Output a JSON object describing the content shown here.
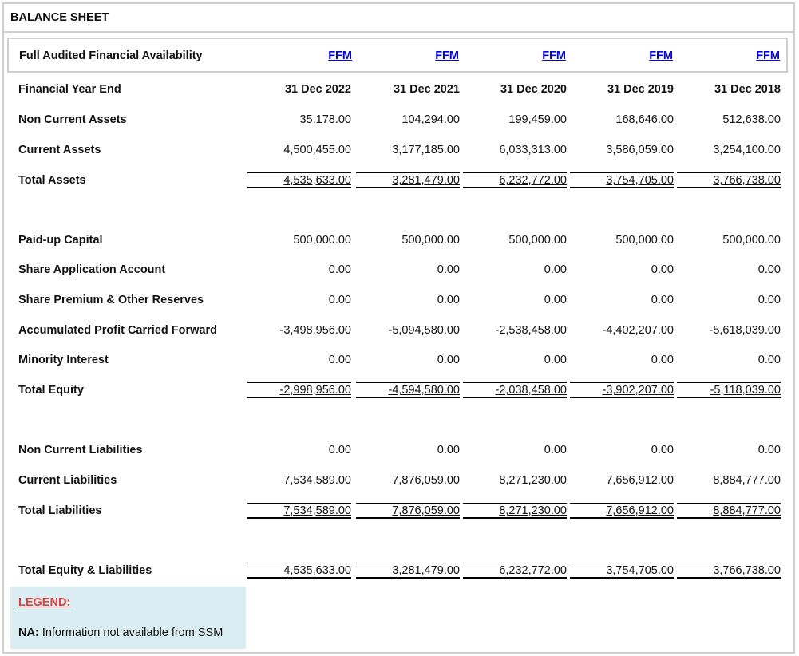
{
  "title": "BALANCE SHEET",
  "availability": {
    "label": "Full Audited Financial Availability",
    "links": [
      "FFM",
      "FFM",
      "FFM",
      "FFM",
      "FFM"
    ]
  },
  "header": {
    "label": "Financial Year End",
    "years": [
      "31 Dec 2022",
      "31 Dec 2021",
      "31 Dec 2020",
      "31 Dec 2019",
      "31 Dec 2018"
    ]
  },
  "rows": {
    "non_current_assets": {
      "label": "Non Current Assets",
      "values": [
        "35,178.00",
        "104,294.00",
        "199,459.00",
        "168,646.00",
        "512,638.00"
      ]
    },
    "current_assets": {
      "label": "Current Assets",
      "values": [
        "4,500,455.00",
        "3,177,185.00",
        "6,033,313.00",
        "3,586,059.00",
        "3,254,100.00"
      ]
    },
    "total_assets": {
      "label": "Total Assets",
      "values": [
        "4,535,633.00",
        "3,281,479.00",
        "6,232,772.00",
        "3,754,705.00",
        "3,766,738.00"
      ]
    },
    "paid_up_capital": {
      "label": "Paid-up Capital",
      "values": [
        "500,000.00",
        "500,000.00",
        "500,000.00",
        "500,000.00",
        "500,000.00"
      ]
    },
    "share_application_account": {
      "label": "Share Application Account",
      "values": [
        "0.00",
        "0.00",
        "0.00",
        "0.00",
        "0.00"
      ]
    },
    "share_premium": {
      "label": "Share Premium & Other Reserves",
      "values": [
        "0.00",
        "0.00",
        "0.00",
        "0.00",
        "0.00"
      ]
    },
    "accumulated_profit": {
      "label": "Accumulated Profit Carried Forward",
      "values": [
        "-3,498,956.00",
        "-5,094,580.00",
        "-2,538,458.00",
        "-4,402,207.00",
        "-5,618,039.00"
      ]
    },
    "minority_interest": {
      "label": "Minority Interest",
      "values": [
        "0.00",
        "0.00",
        "0.00",
        "0.00",
        "0.00"
      ]
    },
    "total_equity": {
      "label": "Total Equity",
      "values": [
        "-2,998,956.00",
        "-4,594,580.00",
        "-2,038,458.00",
        "-3,902,207.00",
        "-5,118,039.00"
      ]
    },
    "non_current_liabilities": {
      "label": "Non Current Liabilities",
      "values": [
        "0.00",
        "0.00",
        "0.00",
        "0.00",
        "0.00"
      ]
    },
    "current_liabilities": {
      "label": "Current Liabilities",
      "values": [
        "7,534,589.00",
        "7,876,059.00",
        "8,271,230.00",
        "7,656,912.00",
        "8,884,777.00"
      ]
    },
    "total_liabilities": {
      "label": "Total Liabilities",
      "values": [
        "7,534,589.00",
        "7,876,059.00",
        "8,271,230.00",
        "7,656,912.00",
        "8,884,777.00"
      ]
    },
    "total_equity_liabilities": {
      "label": "Total Equity & Liabilities",
      "values": [
        "4,535,633.00",
        "3,281,479.00",
        "6,232,772.00",
        "3,754,705.00",
        "3,766,738.00"
      ]
    }
  },
  "legend": {
    "title": "LEGEND:",
    "key": "NA:",
    "text": "Information not available from SSM"
  }
}
